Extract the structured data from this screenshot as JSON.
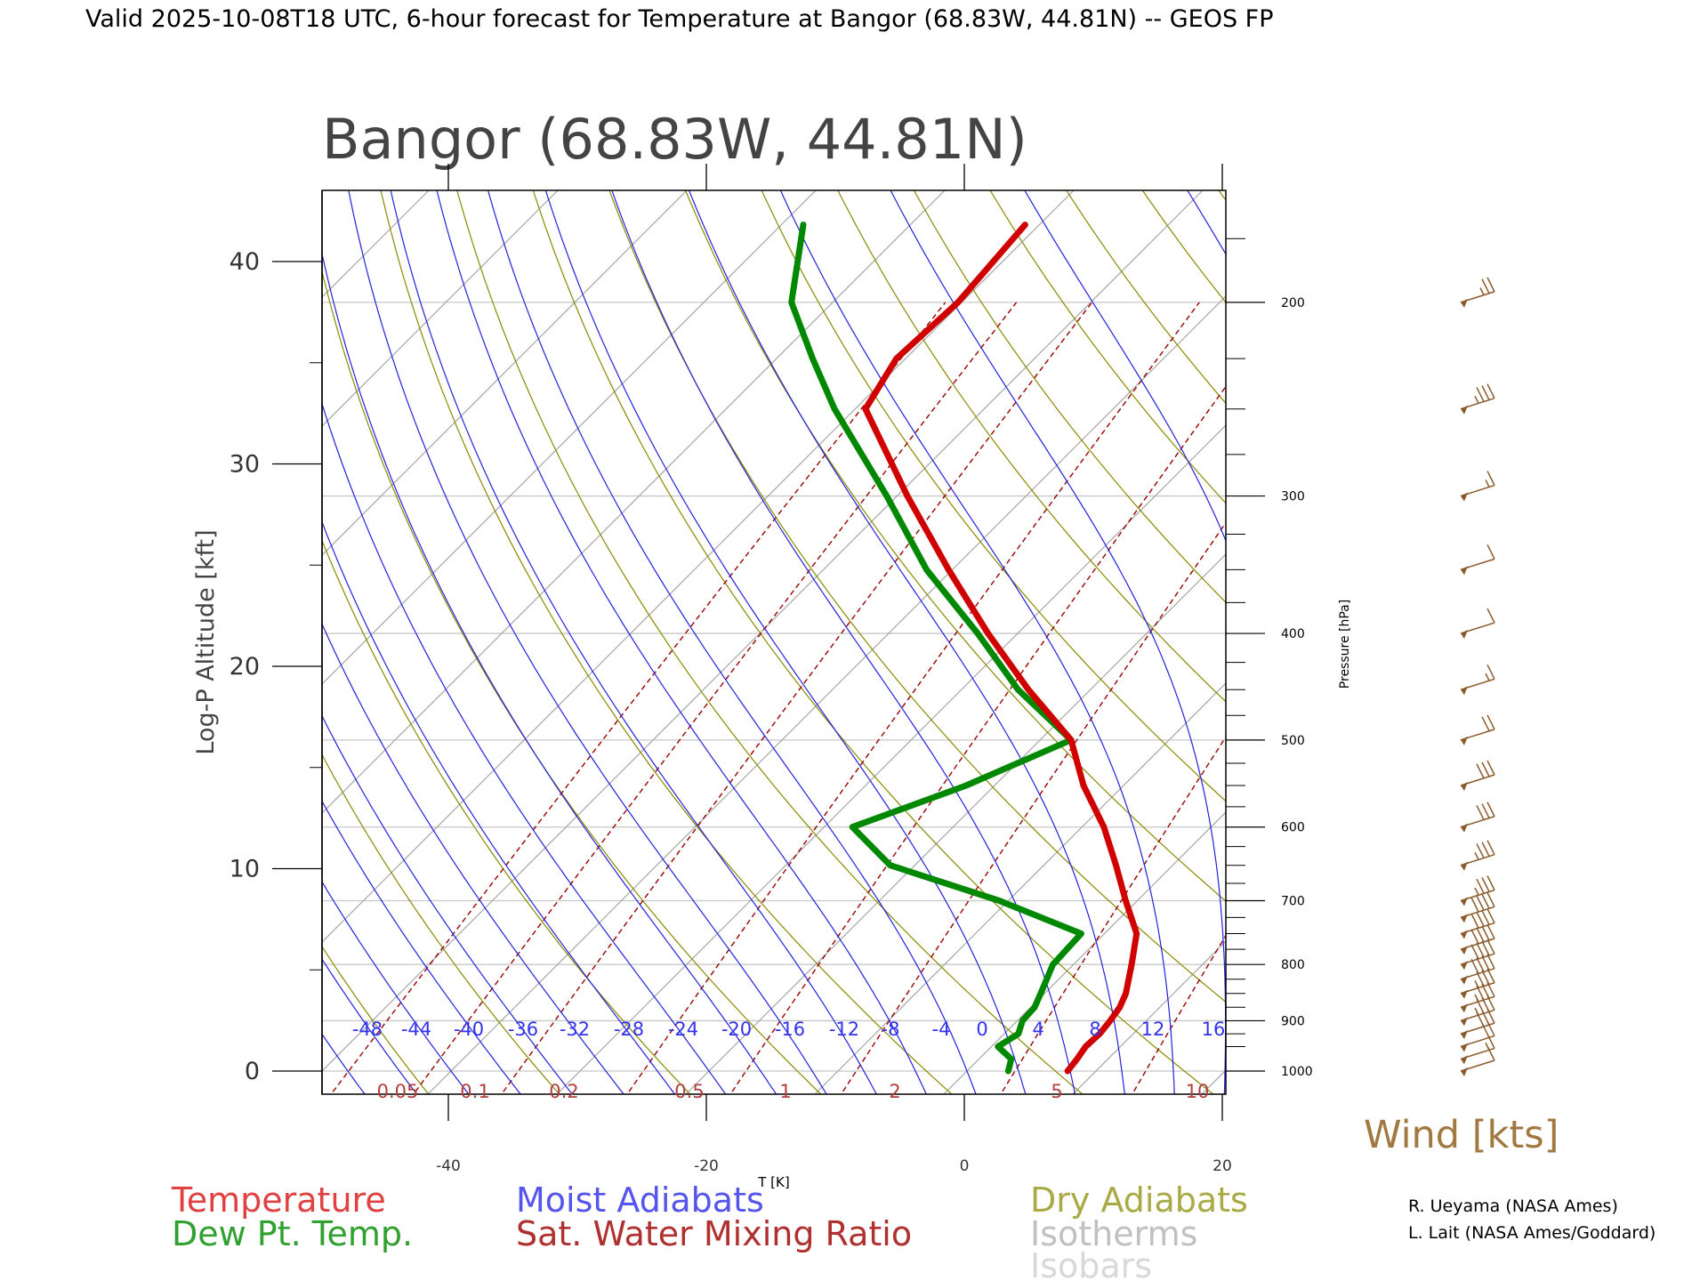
{
  "title": "Valid 2025-10-08T18 UTC, 6-hour forecast for Temperature at Bangor (68.83W, 44.81N) -- GEOS FP",
  "station_label": "Bangor (68.83W, 44.81N)",
  "colors": {
    "temperature": "#d00000",
    "dewpoint": "#008800",
    "moist_adiabats": "#2222dd",
    "mixing_ratio": "#990000",
    "dry_adiabats": "#8a8a00",
    "isotherms": "#a8a8a8",
    "isobars": "#c8c8c8",
    "wind": "#8b5a2b"
  },
  "credits": [
    "R. Ueyama (NASA Ames)",
    "L. Lait (NASA Ames/Goddard)"
  ],
  "chart_data": {
    "type": "line",
    "subtype": "skew-T log-P diagram",
    "title": "Bangor (68.83W, 44.81N)",
    "xlabel": "T [K]",
    "ylabel_left": "Log-P Altitude [kft]",
    "ylabel_right": "Pressure [hPa]",
    "left_axis_ticks": [
      "0",
      "10",
      "20",
      "30",
      "40"
    ],
    "right_axis_ticks": [
      "1000",
      "900",
      "800",
      "700",
      "600",
      "500",
      "400",
      "300",
      "200"
    ],
    "x_axis_ticks": [
      "-40",
      "-20",
      "0",
      "20"
    ],
    "moist_adiabat_labels": [
      "-48",
      "-44",
      "-40",
      "-36",
      "-32",
      "-28",
      "-24",
      "-20",
      "-16",
      "-12",
      "-8",
      "-4",
      "0",
      "4",
      "8",
      "12",
      "16"
    ],
    "mixing_ratio_labels": [
      "0.05",
      "0.1",
      "0.2",
      "0.5",
      "1",
      "2",
      "5",
      "10"
    ],
    "series": [
      {
        "name": "Temperature",
        "points": [
          {
            "p": 1000,
            "t": 7.8
          },
          {
            "p": 975,
            "t": 7.6
          },
          {
            "p": 950,
            "t": 7.3
          },
          {
            "p": 925,
            "t": 7.4
          },
          {
            "p": 900,
            "t": 7.2
          },
          {
            "p": 875,
            "t": 6.9
          },
          {
            "p": 850,
            "t": 6.3
          },
          {
            "p": 800,
            "t": 4.5
          },
          {
            "p": 750,
            "t": 2.5
          },
          {
            "p": 700,
            "t": -0.9
          },
          {
            "p": 650,
            "t": -4.4
          },
          {
            "p": 600,
            "t": -8.3
          },
          {
            "p": 550,
            "t": -13.1
          },
          {
            "p": 500,
            "t": -17.6
          },
          {
            "p": 450,
            "t": -24.8
          },
          {
            "p": 400,
            "t": -32.3
          },
          {
            "p": 350,
            "t": -40.3
          },
          {
            "p": 300,
            "t": -49.2
          },
          {
            "p": 250,
            "t": -59.2
          },
          {
            "p": 225,
            "t": -60.7
          },
          {
            "p": 200,
            "t": -60.3
          },
          {
            "p": 170,
            "t": -61.1
          }
        ]
      },
      {
        "name": "Dew Pt. Temp.",
        "points": [
          {
            "p": 1000,
            "t": 3.2
          },
          {
            "p": 975,
            "t": 2.5
          },
          {
            "p": 950,
            "t": 0.5
          },
          {
            "p": 925,
            "t": 1.1
          },
          {
            "p": 900,
            "t": 0.4
          },
          {
            "p": 875,
            "t": 0.3
          },
          {
            "p": 850,
            "t": -0.3
          },
          {
            "p": 800,
            "t": -1.6
          },
          {
            "p": 750,
            "t": -1.8
          },
          {
            "p": 700,
            "t": -10.7
          },
          {
            "p": 650,
            "t": -21.9
          },
          {
            "p": 600,
            "t": -27.8
          },
          {
            "p": 550,
            "t": -22.2
          },
          {
            "p": 500,
            "t": -17.6
          },
          {
            "p": 450,
            "t": -25.6
          },
          {
            "p": 400,
            "t": -33.1
          },
          {
            "p": 350,
            "t": -42.0
          },
          {
            "p": 300,
            "t": -50.8
          },
          {
            "p": 250,
            "t": -61.6
          },
          {
            "p": 225,
            "t": -67.2
          },
          {
            "p": 200,
            "t": -73.2
          },
          {
            "p": 170,
            "t": -78.3
          }
        ]
      }
    ],
    "wind_barbs": [
      {
        "p": 1000,
        "speed_kts": 12
      },
      {
        "p": 975,
        "speed_kts": 15
      },
      {
        "p": 950,
        "speed_kts": 20
      },
      {
        "p": 925,
        "speed_kts": 30
      },
      {
        "p": 900,
        "speed_kts": 35
      },
      {
        "p": 875,
        "speed_kts": 35
      },
      {
        "p": 850,
        "speed_kts": 35
      },
      {
        "p": 825,
        "speed_kts": 40
      },
      {
        "p": 800,
        "speed_kts": 40
      },
      {
        "p": 775,
        "speed_kts": 40
      },
      {
        "p": 750,
        "speed_kts": 40
      },
      {
        "p": 725,
        "speed_kts": 40
      },
      {
        "p": 700,
        "speed_kts": 35
      },
      {
        "p": 650,
        "speed_kts": 35
      },
      {
        "p": 600,
        "speed_kts": 30
      },
      {
        "p": 550,
        "speed_kts": 30
      },
      {
        "p": 500,
        "speed_kts": 20
      },
      {
        "p": 450,
        "speed_kts": 15
      },
      {
        "p": 400,
        "speed_kts": 10
      },
      {
        "p": 350,
        "speed_kts": 10
      },
      {
        "p": 300,
        "speed_kts": 15
      },
      {
        "p": 250,
        "speed_kts": 35
      },
      {
        "p": 200,
        "speed_kts": 25
      }
    ],
    "legend": [
      "Temperature",
      "Dew Pt. Temp.",
      "Moist Adiabats",
      "Sat. Water Mixing Ratio",
      "Dry Adiabats",
      "Isotherms",
      "Isobars"
    ],
    "wind_title": "Wind [kts]",
    "grid": true
  }
}
